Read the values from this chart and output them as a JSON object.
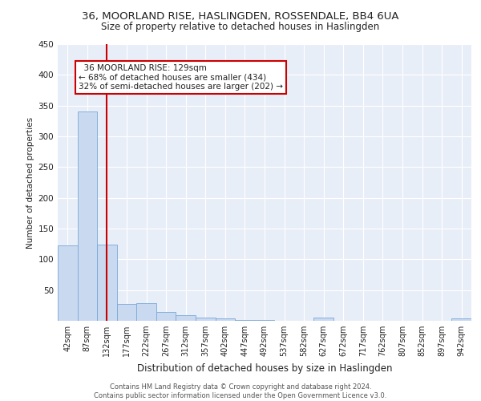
{
  "title1": "36, MOORLAND RISE, HASLINGDEN, ROSSENDALE, BB4 6UA",
  "title2": "Size of property relative to detached houses in Haslingden",
  "xlabel": "Distribution of detached houses by size in Haslingden",
  "ylabel": "Number of detached properties",
  "bin_labels": [
    "42sqm",
    "87sqm",
    "132sqm",
    "177sqm",
    "222sqm",
    "267sqm",
    "312sqm",
    "357sqm",
    "402sqm",
    "447sqm",
    "492sqm",
    "537sqm",
    "582sqm",
    "627sqm",
    "672sqm",
    "717sqm",
    "762sqm",
    "807sqm",
    "852sqm",
    "897sqm",
    "942sqm"
  ],
  "bin_values": [
    123,
    340,
    124,
    28,
    29,
    15,
    9,
    5,
    4,
    1,
    1,
    0,
    0,
    5,
    0,
    0,
    0,
    0,
    0,
    0,
    4
  ],
  "bar_color": "#c8d9f0",
  "bar_edge_color": "#7aa8d8",
  "property_line_x": 2.0,
  "property_line_color": "#cc0000",
  "annotation_text": "  36 MOORLAND RISE: 129sqm\n← 68% of detached houses are smaller (434)\n32% of semi-detached houses are larger (202) →",
  "annotation_box_color": "#ffffff",
  "annotation_box_edge_color": "#cc0000",
  "ylim": [
    0,
    450
  ],
  "yticks": [
    0,
    50,
    100,
    150,
    200,
    250,
    300,
    350,
    400,
    450
  ],
  "footer": "Contains HM Land Registry data © Crown copyright and database right 2024.\nContains public sector information licensed under the Open Government Licence v3.0.",
  "bg_color": "#e8eef8",
  "grid_color": "#ffffff",
  "title1_fontsize": 9.5,
  "title2_fontsize": 8.5,
  "xlabel_fontsize": 8.5,
  "ylabel_fontsize": 7.5,
  "tick_fontsize": 7,
  "annotation_fontsize": 7.5,
  "footer_fontsize": 6
}
